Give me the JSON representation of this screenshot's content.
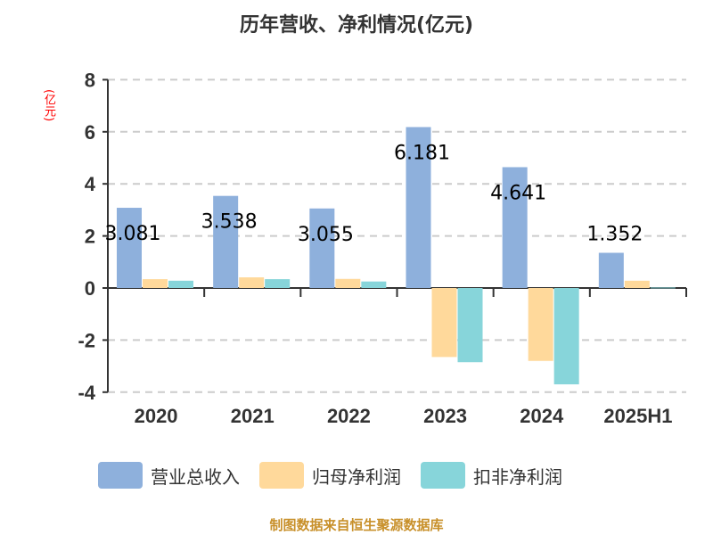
{
  "chart_data": {
    "type": "bar",
    "title": "历年营收、净利情况(亿元)",
    "ylabel": "(亿元)",
    "xlabel": "",
    "categories": [
      "2020",
      "2021",
      "2022",
      "2023",
      "2024",
      "2025H1"
    ],
    "series": [
      {
        "name": "营业总收入",
        "color": "#8eb0dc",
        "values": [
          3.081,
          3.538,
          3.055,
          6.181,
          4.641,
          1.352
        ]
      },
      {
        "name": "归母净利润",
        "color": "#ffd99b",
        "values": [
          0.34,
          0.41,
          0.35,
          -2.65,
          -2.8,
          0.28
        ]
      },
      {
        "name": "扣非净利润",
        "color": "#87d5da",
        "values": [
          0.28,
          0.34,
          0.25,
          -2.85,
          -3.7,
          0.02
        ]
      }
    ],
    "data_labels": [
      "3.081",
      "3.538",
      "3.055",
      "6.181",
      "4.641",
      "1.352"
    ],
    "yticks": [
      -4,
      -2,
      0,
      2,
      4,
      6,
      8
    ],
    "ylim": [
      -4,
      8
    ],
    "grid": true,
    "legend_position": "bottom"
  },
  "header": {
    "title": "历年营收、净利情况(亿元)"
  },
  "axis": {
    "unit": "(亿元)"
  },
  "legend": [
    {
      "label": "营业总收入",
      "color": "#8eb0dc"
    },
    {
      "label": "归母净利润",
      "color": "#ffd99b"
    },
    {
      "label": "扣非净利润",
      "color": "#87d5da"
    }
  ],
  "footer": {
    "source": "制图数据来自恒生聚源数据库"
  }
}
